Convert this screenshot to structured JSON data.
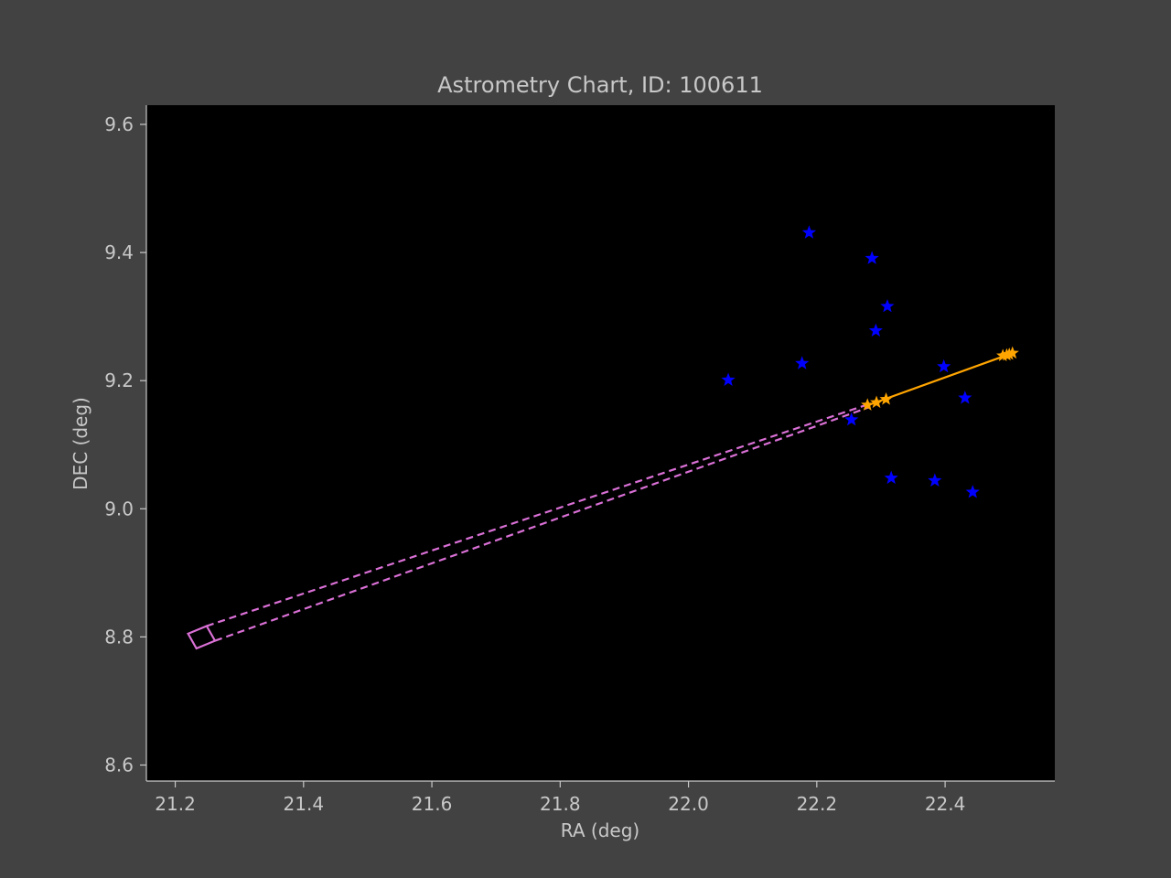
{
  "chart_data": {
    "type": "scatter",
    "title": "Astrometry Chart, ID: 100611",
    "xlabel": "RA (deg)",
    "ylabel": "DEC (deg)",
    "xlim": [
      21.155,
      22.571
    ],
    "ylim": [
      8.575,
      9.63
    ],
    "xticks": [
      "21.2",
      "21.4",
      "21.6",
      "21.8",
      "22.0",
      "22.2",
      "22.4"
    ],
    "yticks": [
      "8.6",
      "8.8",
      "9.0",
      "9.2",
      "9.4",
      "9.6"
    ],
    "grid": false,
    "colors": {
      "background": "#424242",
      "plot_area": "#000000",
      "axis": "#c8c8c8",
      "reference_stars": "#0000ff",
      "track": "#ffa500",
      "uncertainty": "#da70d6"
    },
    "reference_stars": [
      {
        "x": 22.188,
        "y": 9.431
      },
      {
        "x": 22.286,
        "y": 9.391
      },
      {
        "x": 22.31,
        "y": 9.316
      },
      {
        "x": 22.292,
        "y": 9.278
      },
      {
        "x": 22.062,
        "y": 9.201
      },
      {
        "x": 22.177,
        "y": 9.227
      },
      {
        "x": 22.398,
        "y": 9.222
      },
      {
        "x": 22.431,
        "y": 9.173
      },
      {
        "x": 22.254,
        "y": 9.139
      },
      {
        "x": 22.316,
        "y": 9.048
      },
      {
        "x": 22.384,
        "y": 9.044
      },
      {
        "x": 22.443,
        "y": 9.026
      }
    ],
    "track_points": [
      {
        "x": 22.49,
        "y": 9.239
      },
      {
        "x": 22.496,
        "y": 9.24
      },
      {
        "x": 22.5,
        "y": 9.241
      },
      {
        "x": 22.505,
        "y": 9.243
      },
      {
        "x": 22.279,
        "y": 9.162
      },
      {
        "x": 22.293,
        "y": 9.166
      },
      {
        "x": 22.308,
        "y": 9.171
      }
    ],
    "track_line": [
      {
        "x": 22.275,
        "y": 9.16
      },
      {
        "x": 22.505,
        "y": 9.243
      }
    ],
    "uncertainty_box": [
      {
        "x": 21.22,
        "y": 8.805
      },
      {
        "x": 21.249,
        "y": 8.817
      },
      {
        "x": 21.262,
        "y": 8.794
      },
      {
        "x": 21.233,
        "y": 8.782
      }
    ],
    "uncertainty_lines": [
      {
        "from": {
          "x": 21.249,
          "y": 8.817
        },
        "to": {
          "x": 22.28,
          "y": 9.163
        }
      },
      {
        "from": {
          "x": 21.262,
          "y": 8.794
        },
        "to": {
          "x": 22.28,
          "y": 9.158
        }
      }
    ]
  }
}
